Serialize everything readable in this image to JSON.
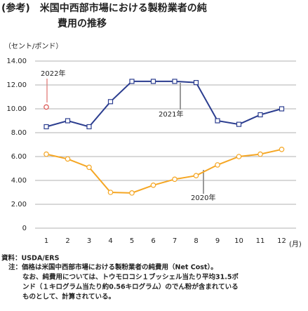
{
  "chart_data": {
    "type": "line",
    "title_lines": [
      "(参考)　米国中西部市場における製粉業者の純",
      "費用の推移"
    ],
    "y_label": "（セント/ポンド）",
    "x_unit": "(月)",
    "categories": [
      "1",
      "2",
      "3",
      "4",
      "5",
      "6",
      "7",
      "8",
      "9",
      "10",
      "11",
      "12"
    ],
    "series": [
      {
        "name": "2022年",
        "color": "#d9534f",
        "marker": "circle",
        "values": [
          10.15,
          null,
          null,
          null,
          null,
          null,
          null,
          null,
          null,
          null,
          null,
          null
        ]
      },
      {
        "name": "2021年",
        "color": "#2b3d8f",
        "marker": "square",
        "values": [
          8.5,
          9.0,
          8.5,
          10.6,
          12.3,
          12.3,
          12.3,
          12.2,
          9.0,
          8.7,
          9.5,
          10.0
        ]
      },
      {
        "name": "2020年",
        "color": "#f5a623",
        "marker": "circle",
        "values": [
          6.2,
          5.8,
          5.1,
          3.0,
          2.95,
          3.6,
          4.1,
          4.4,
          5.3,
          6.0,
          6.2,
          6.6
        ]
      }
    ],
    "ylim": [
      0,
      14
    ],
    "yticks": [
      {
        "value": 0,
        "label": "0"
      },
      {
        "value": 2,
        "label": "2.00"
      },
      {
        "value": 4,
        "label": "4.00"
      },
      {
        "value": 6,
        "label": "6.00"
      },
      {
        "value": 8,
        "label": "8.00"
      },
      {
        "value": 10,
        "label": "10.00"
      },
      {
        "value": 12,
        "label": "12.00"
      },
      {
        "value": 14,
        "label": "14.00"
      }
    ],
    "grid": true,
    "notes": [
      "資料：USDA/ERS",
      "注：価格は米国中西部市場における製粉業者の純費用（Net Cost）。",
      "なお、純費用については、トウモロコシ１ブッシェル当たり平均31.5ポ",
      "ンド（１キログラム当たり約0.56キログラム）のでん粉が含まれている",
      "ものとして、計算されている。"
    ]
  }
}
